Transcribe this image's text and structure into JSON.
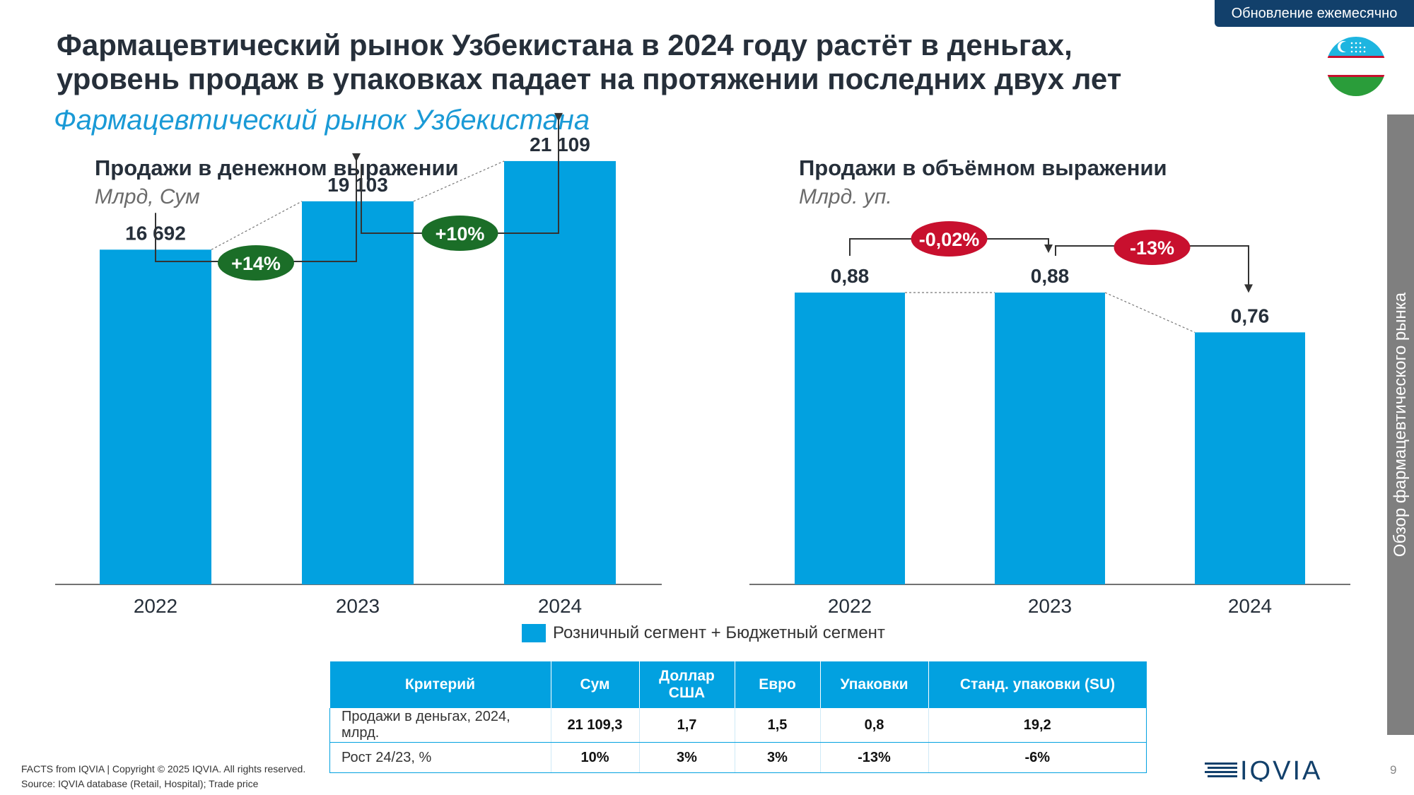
{
  "badge": "Обновление ежемесячно",
  "title_line1": "Фармацевтический рынок Узбекистана в 2024 году растёт в деньгах,",
  "title_line2": "уровень продаж в упаковках падает на протяжении последних двух лет",
  "subtitle": "Фармацевтический рынок Узбекистана",
  "sidebar_label": "Обзор фармацевтического рынка",
  "colors": {
    "bar": "#02a1e0",
    "positive": "#1b6e28",
    "negative": "#c8102e",
    "accent": "#1a9ad6"
  },
  "chart_data": [
    {
      "type": "bar",
      "title": "Продажи в денежном выражении",
      "ylabel": "Млрд, Сум",
      "categories": [
        "2022",
        "2023",
        "2024"
      ],
      "values": [
        16692,
        19103,
        21109
      ],
      "value_labels": [
        "16 692",
        "19 103",
        "21 109"
      ],
      "growth": [
        {
          "from": "2022",
          "to": "2023",
          "label": "+14%",
          "sign": "positive"
        },
        {
          "from": "2023",
          "to": "2024",
          "label": "+10%",
          "sign": "positive"
        }
      ],
      "ylim": [
        0,
        24000
      ],
      "grid": false
    },
    {
      "type": "bar",
      "title": "Продажи в объёмном выражении",
      "ylabel": "Млрд. уп.",
      "categories": [
        "2022",
        "2023",
        "2024"
      ],
      "values": [
        0.88,
        0.88,
        0.76
      ],
      "value_labels": [
        "0,88",
        "0,88",
        "0,76"
      ],
      "growth": [
        {
          "from": "2022",
          "to": "2023",
          "label": "-0,02%",
          "sign": "negative"
        },
        {
          "from": "2023",
          "to": "2024",
          "label": "-13%",
          "sign": "negative"
        }
      ],
      "ylim": [
        0,
        1.0
      ],
      "grid": false
    }
  ],
  "legend": "Розничный сегмент + Бюджетный сегмент",
  "table": {
    "headers": [
      "Критерий",
      "Сум",
      "Доллар США",
      "Евро",
      "Упаковки",
      "Станд. упаковки (SU)"
    ],
    "rows": [
      [
        "Продажи в деньгах,  2024, млрд.",
        "21 109,3",
        "1,7",
        "1,5",
        "0,8",
        "19,2"
      ],
      [
        "Рост 24/23, %",
        "10%",
        "3%",
        "3%",
        "-13%",
        "-6%"
      ]
    ]
  },
  "footer_line1": "FACTS from IQVIA | Copyright © 2025 IQVIA. All rights reserved.",
  "footer_line2": "Source: IQVIA database (Retail, Hospital); Trade price",
  "logo_text": "IQVIA",
  "page_number": "9"
}
